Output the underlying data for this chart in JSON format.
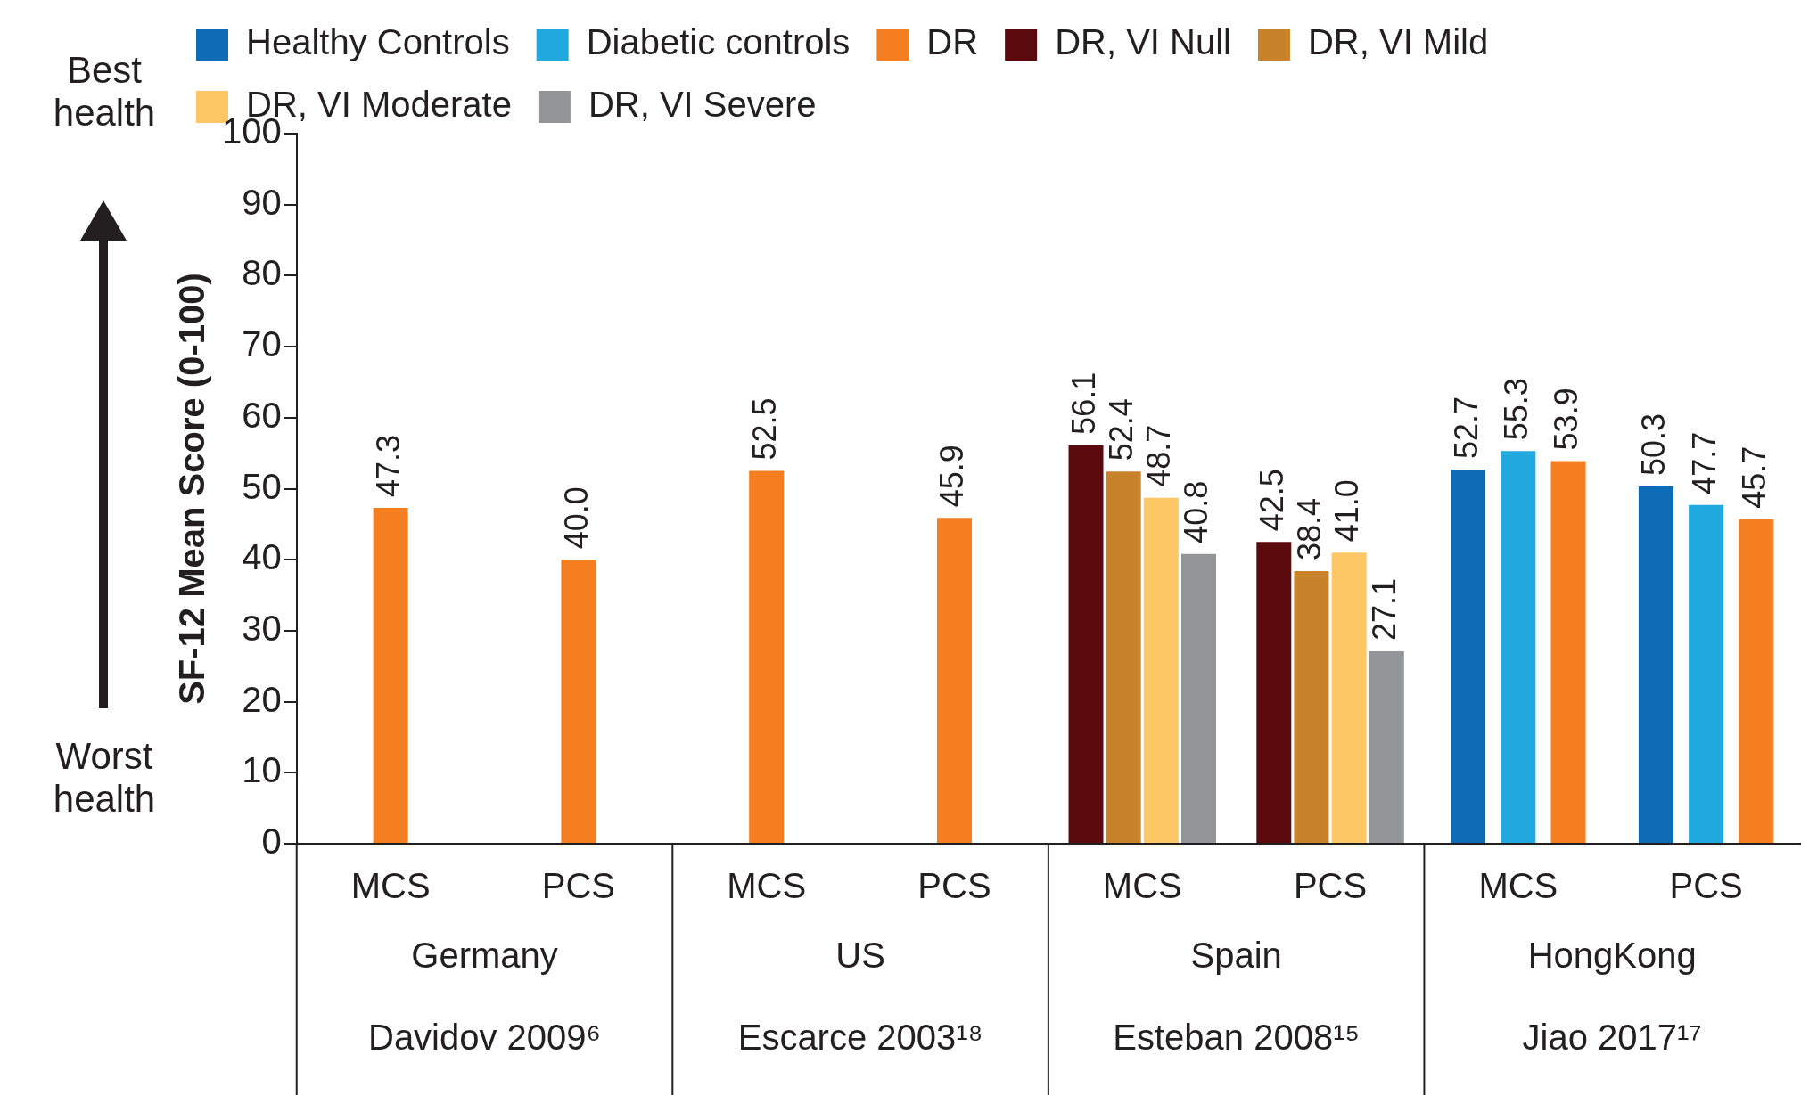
{
  "chart_data": {
    "type": "bar",
    "ylabel": "SF-12 Mean Score (0-100)",
    "categories": [
      "MCS",
      "PCS",
      "MCS",
      "PCS",
      "MCS",
      "PCS",
      "MCS",
      "PCS"
    ],
    "series": [
      {
        "name": "Healthy Controls",
        "color": "#0e6bb5",
        "values": [
          null,
          null,
          null,
          null,
          null,
          null,
          52.7,
          50.3
        ],
        "value_labels": [
          null,
          null,
          null,
          null,
          null,
          null,
          "52.7",
          "50.3"
        ]
      },
      {
        "name": "Diabetic controls",
        "color": "#21a8de",
        "values": [
          null,
          null,
          null,
          null,
          null,
          null,
          55.3,
          47.7
        ],
        "value_labels": [
          null,
          null,
          null,
          null,
          null,
          null,
          "55.3",
          "47.7"
        ]
      },
      {
        "name": "DR",
        "color": "#f47e20",
        "values": [
          47.3,
          40.0,
          52.5,
          45.9,
          null,
          null,
          53.9,
          45.7
        ],
        "value_labels": [
          "47.3",
          "40.0",
          "52.5",
          "45.9",
          null,
          null,
          "53.9",
          "45.7"
        ]
      },
      {
        "name": "DR, VI Null",
        "color": "#5a0a0c",
        "values": [
          null,
          null,
          null,
          null,
          56.1,
          42.5,
          null,
          null
        ],
        "value_labels": [
          null,
          null,
          null,
          null,
          "56.1",
          "42.5",
          null,
          null
        ]
      },
      {
        "name": "DR, VI Mild",
        "color": "#c8822a",
        "values": [
          null,
          null,
          null,
          null,
          52.4,
          38.4,
          null,
          null
        ],
        "value_labels": [
          null,
          null,
          null,
          null,
          "52.4",
          "38.4",
          null,
          null
        ]
      },
      {
        "name": "DR, VI Moderate",
        "color": "#fdc765",
        "values": [
          null,
          null,
          null,
          null,
          48.7,
          41.0,
          null,
          null
        ],
        "value_labels": [
          null,
          null,
          null,
          null,
          "48.7",
          "41.0",
          null,
          null
        ]
      },
      {
        "name": "DR, VI Severe",
        "color": "#939598",
        "values": [
          null,
          null,
          null,
          null,
          40.8,
          27.1,
          null,
          null
        ],
        "value_labels": [
          null,
          null,
          null,
          null,
          "40.8",
          "27.1",
          null,
          null
        ]
      }
    ],
    "ylim": [
      0,
      100
    ],
    "yticks": [
      0,
      10,
      20,
      30,
      40,
      50,
      60,
      70,
      80,
      90,
      100
    ],
    "grid": false,
    "legend": "top",
    "annotations": [
      "Germany",
      "US",
      "Spain",
      "HongKong",
      "Davidov 2009⁶",
      "Escarce 2003¹⁸",
      "Esteban 2008¹⁵",
      "Jiao 2017¹⁷",
      "Best health",
      "Worst health"
    ]
  }
}
